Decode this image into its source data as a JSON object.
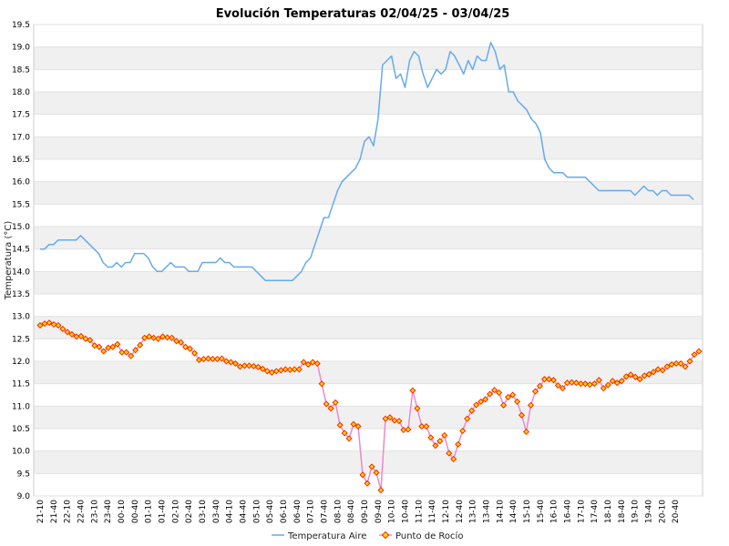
{
  "chart_data": {
    "type": "line",
    "title": "Evolución Temperaturas 02/04/25 - 03/04/25",
    "ylabel": "Temperatura (°C)",
    "xlabel": "",
    "ylim": [
      9.0,
      19.5
    ],
    "ytick_step": 0.5,
    "grid": "horizontal bands",
    "legend_position": "bottom",
    "x_tick_labels": [
      "21-10",
      "21-40",
      "22-10",
      "22-40",
      "23-10",
      "23-40",
      "00-10",
      "00-40",
      "01-10",
      "01-40",
      "02-10",
      "02-40",
      "03-10",
      "03-40",
      "04-10",
      "04-40",
      "05-10",
      "05-40",
      "06-10",
      "06-40",
      "07-10",
      "07-40",
      "08-10",
      "08-40",
      "09-10",
      "09-40",
      "10-10",
      "10-40",
      "11-10",
      "11-40",
      "12-10",
      "12-40",
      "13-10",
      "13-40",
      "14-10",
      "14-40",
      "15-10",
      "15-40",
      "16-10",
      "16-40",
      "17-10",
      "17-40",
      "18-10",
      "18-40",
      "19-10",
      "19-40",
      "20-10",
      "20-40"
    ],
    "colors": {
      "air": "#66aaee",
      "dew": "#ee88cc",
      "dew_marker": "#ff2200",
      "dew_marker_fill": "#ffdd00",
      "band": "#f0f0f0"
    },
    "series": [
      {
        "name": "Temperatura Aire",
        "style": "line",
        "values": [
          14.5,
          14.5,
          14.6,
          14.6,
          14.7,
          14.7,
          14.7,
          14.7,
          14.7,
          14.8,
          14.7,
          14.6,
          14.5,
          14.4,
          14.2,
          14.1,
          14.1,
          14.2,
          14.1,
          14.2,
          14.2,
          14.4,
          14.4,
          14.4,
          14.3,
          14.1,
          14.0,
          14.0,
          14.1,
          14.2,
          14.1,
          14.1,
          14.1,
          14.0,
          14.0,
          14.0,
          14.2,
          14.2,
          14.2,
          14.2,
          14.3,
          14.2,
          14.2,
          14.1,
          14.1,
          14.1,
          14.1,
          14.1,
          14.0,
          13.9,
          13.8,
          13.8,
          13.8,
          13.8,
          13.8,
          13.8,
          13.8,
          13.9,
          14.0,
          14.2,
          14.3,
          14.6,
          14.9,
          15.2,
          15.2,
          15.5,
          15.8,
          16.0,
          16.1,
          16.2,
          16.3,
          16.5,
          16.9,
          17.0,
          16.8,
          17.4,
          18.6,
          18.7,
          18.8,
          18.3,
          18.4,
          18.1,
          18.7,
          18.9,
          18.8,
          18.4,
          18.1,
          18.3,
          18.5,
          18.4,
          18.5,
          18.9,
          18.8,
          18.6,
          18.4,
          18.7,
          18.5,
          18.8,
          18.7,
          18.7,
          19.1,
          18.9,
          18.5,
          18.6,
          18.0,
          18.0,
          17.8,
          17.7,
          17.6,
          17.4,
          17.3,
          17.1,
          16.5,
          16.3,
          16.2,
          16.2,
          16.2,
          16.1,
          16.1,
          16.1,
          16.1,
          16.1,
          16.0,
          15.9,
          15.8,
          15.8,
          15.8,
          15.8,
          15.8,
          15.8,
          15.8,
          15.8,
          15.7,
          15.8,
          15.9,
          15.8,
          15.8,
          15.7,
          15.8,
          15.8,
          15.7,
          15.7,
          15.7,
          15.7,
          15.7,
          15.6
        ]
      },
      {
        "name": "Punto de Rocío",
        "style": "line+markers",
        "values": [
          12.8,
          12.84,
          12.86,
          12.82,
          12.8,
          12.72,
          12.65,
          12.6,
          12.55,
          12.56,
          12.5,
          12.47,
          12.35,
          12.32,
          12.22,
          12.3,
          12.32,
          12.38,
          12.2,
          12.2,
          12.12,
          12.25,
          12.36,
          12.52,
          12.55,
          12.52,
          12.5,
          12.55,
          12.53,
          12.52,
          12.45,
          12.42,
          12.32,
          12.28,
          12.18,
          12.03,
          12.05,
          12.06,
          12.05,
          12.05,
          12.06,
          12.0,
          11.98,
          11.95,
          11.88,
          11.9,
          11.9,
          11.89,
          11.87,
          11.83,
          11.78,
          11.75,
          11.78,
          11.8,
          11.82,
          11.81,
          11.82,
          11.82,
          11.98,
          11.93,
          11.98,
          11.95,
          11.5,
          11.05,
          10.95,
          11.08,
          10.58,
          10.4,
          10.28,
          10.6,
          10.55,
          9.47,
          9.28,
          9.65,
          9.52,
          9.13,
          10.72,
          10.75,
          10.68,
          10.67,
          10.47,
          10.48,
          11.35,
          10.95,
          10.55,
          10.55,
          10.3,
          10.12,
          10.22,
          10.35,
          9.95,
          9.82,
          10.15,
          10.45,
          10.72,
          10.9,
          11.03,
          11.1,
          11.15,
          11.27,
          11.36,
          11.3,
          11.02,
          11.2,
          11.25,
          11.1,
          10.8,
          10.43,
          11.02,
          11.33,
          11.45,
          11.6,
          11.6,
          11.58,
          11.46,
          11.4,
          11.52,
          11.53,
          11.52,
          11.5,
          11.5,
          11.48,
          11.5,
          11.58,
          11.4,
          11.47,
          11.56,
          11.52,
          11.56,
          11.66,
          11.7,
          11.65,
          11.6,
          11.68,
          11.71,
          11.76,
          11.82,
          11.8,
          11.88,
          11.93,
          11.95,
          11.95,
          11.88,
          12.0,
          12.15,
          12.22
        ]
      }
    ]
  }
}
